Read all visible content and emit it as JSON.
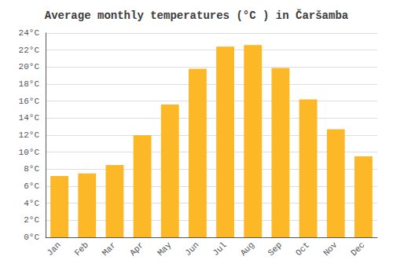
{
  "chart_data": {
    "type": "bar",
    "title": "Average monthly temperatures (°C ) in Čaršamba",
    "categories": [
      "Jan",
      "Feb",
      "Mar",
      "Apr",
      "May",
      "Jun",
      "Jul",
      "Aug",
      "Sep",
      "Oct",
      "Nov",
      "Dec"
    ],
    "values": [
      7.2,
      7.5,
      8.5,
      12.0,
      15.6,
      19.8,
      22.4,
      22.6,
      19.9,
      16.2,
      12.7,
      9.5
    ],
    "color": "#FDB827",
    "ylim": [
      0,
      24
    ],
    "yticks": [
      {
        "value": 0,
        "label": "0°C"
      },
      {
        "value": 2,
        "label": "2°C"
      },
      {
        "value": 4,
        "label": "4°C"
      },
      {
        "value": 6,
        "label": "6°C"
      },
      {
        "value": 8,
        "label": "8°C"
      },
      {
        "value": 10,
        "label": "10°C"
      },
      {
        "value": 12,
        "label": "12°C"
      },
      {
        "value": 14,
        "label": "14°C"
      },
      {
        "value": 16,
        "label": "16°C"
      },
      {
        "value": 18,
        "label": "18°C"
      },
      {
        "value": 20,
        "label": "20°C"
      },
      {
        "value": 22,
        "label": "22°C"
      },
      {
        "value": 24,
        "label": "24°C"
      }
    ],
    "grid": true
  }
}
